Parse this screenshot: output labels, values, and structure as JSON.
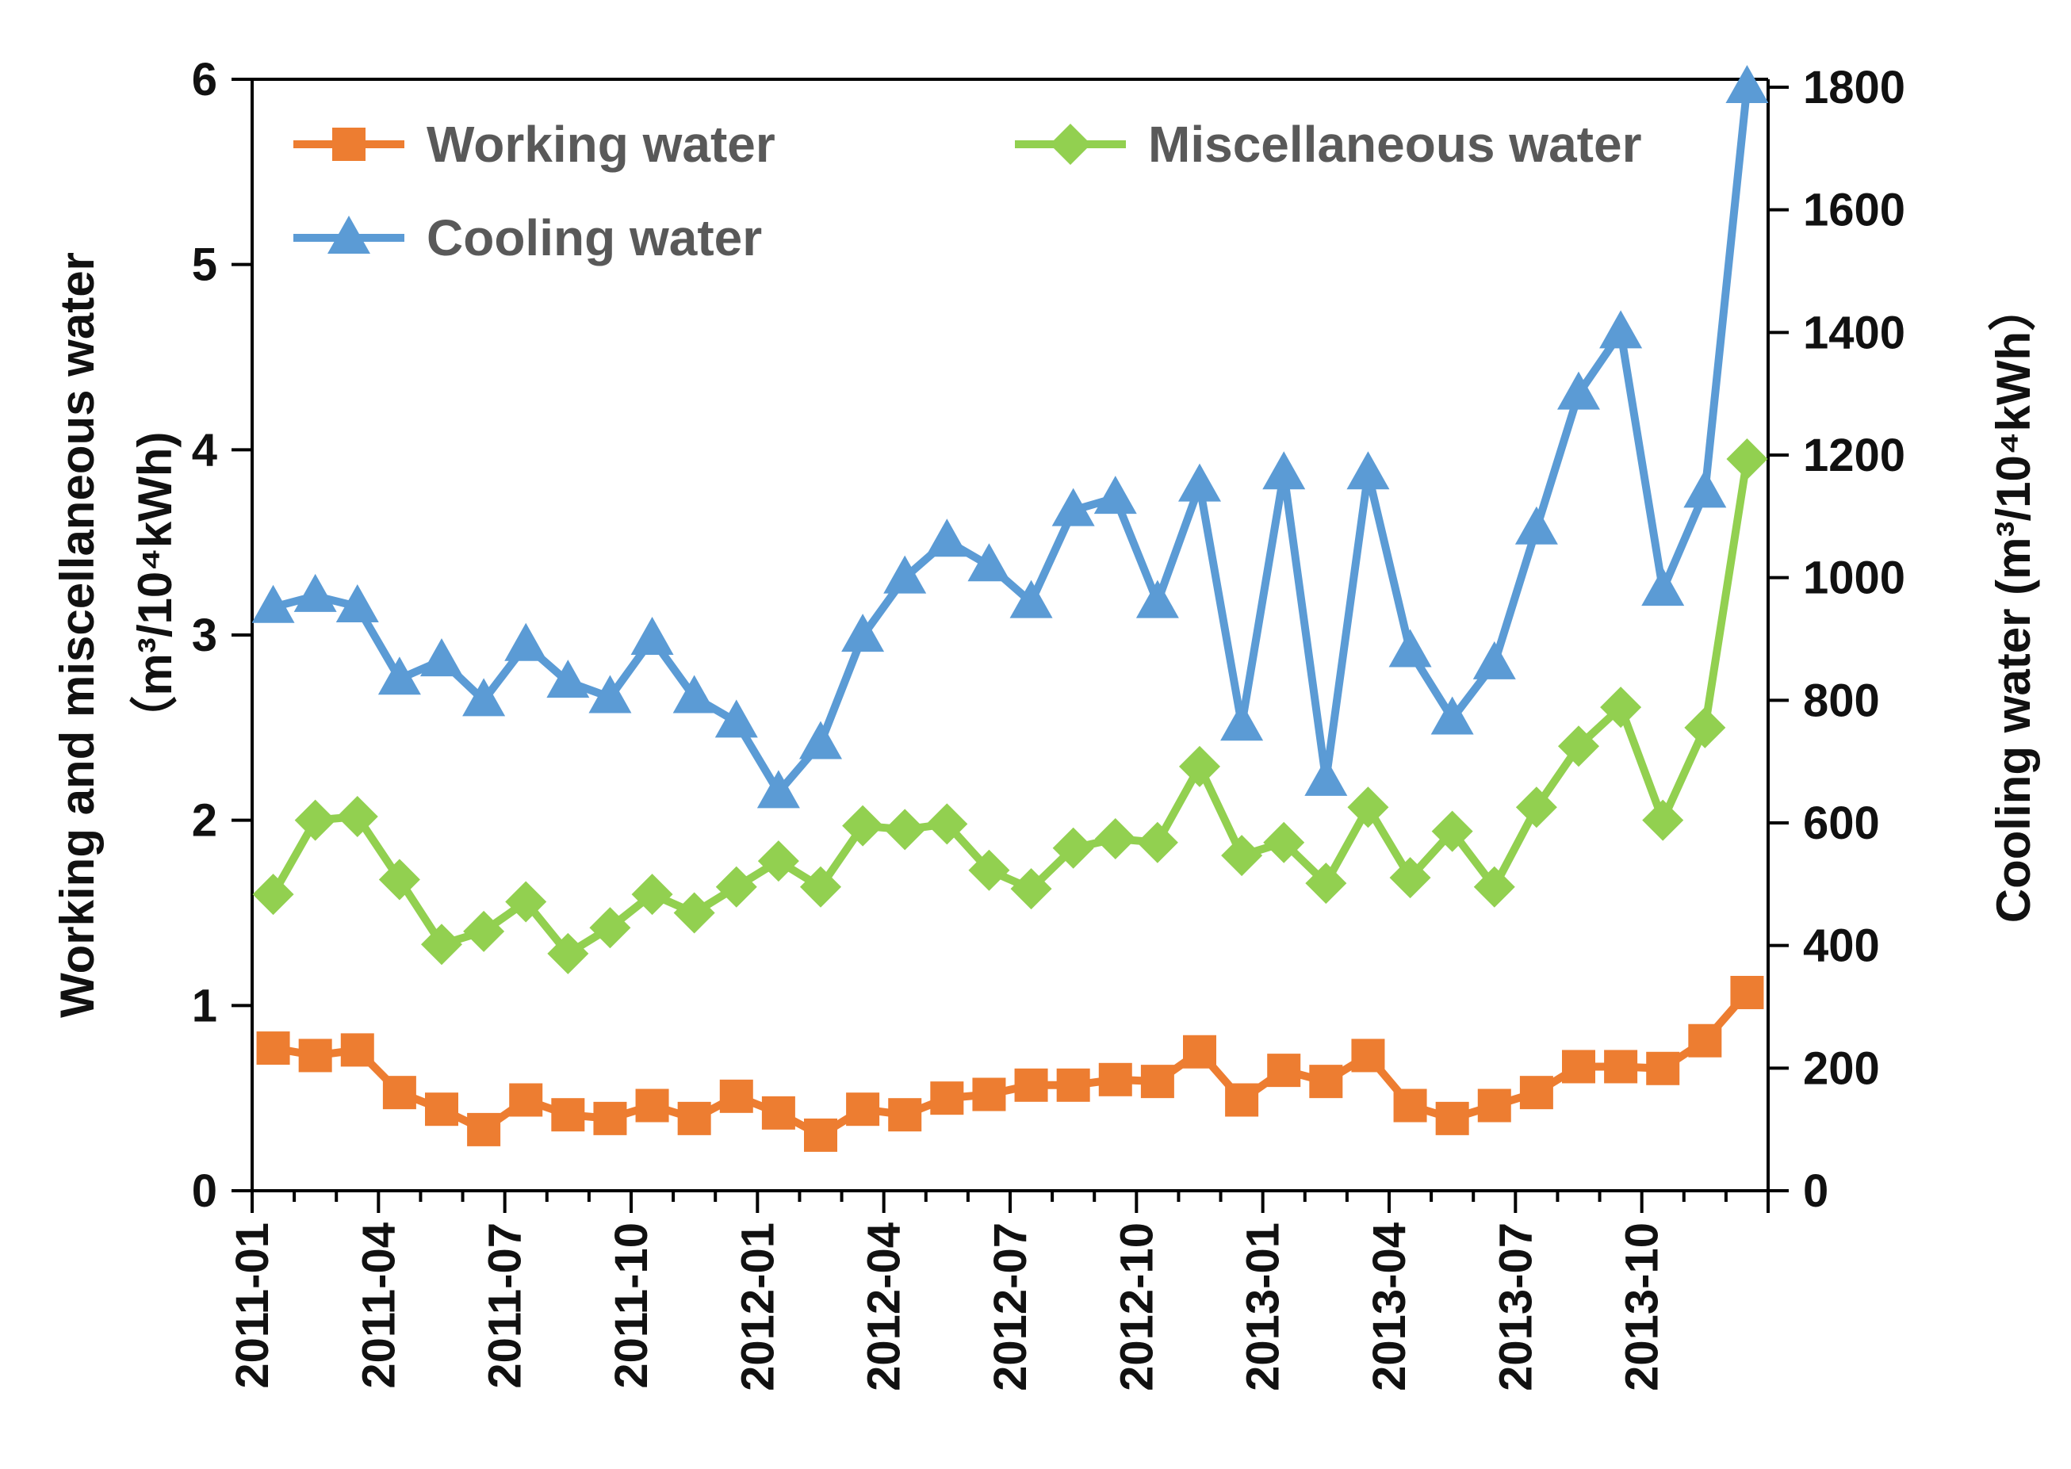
{
  "chart_data": {
    "type": "line",
    "title": "",
    "x": [
      "2011-01",
      "2011-02",
      "2011-03",
      "2011-04",
      "2011-05",
      "2011-06",
      "2011-07",
      "2011-08",
      "2011-09",
      "2011-10",
      "2011-11",
      "2011-12",
      "2012-01",
      "2012-02",
      "2012-03",
      "2012-04",
      "2012-05",
      "2012-06",
      "2012-07",
      "2012-08",
      "2012-09",
      "2012-10",
      "2012-11",
      "2012-12",
      "2013-01",
      "2013-02",
      "2013-03",
      "2013-04",
      "2013-05",
      "2013-06",
      "2013-07",
      "2013-08",
      "2013-09",
      "2013-10",
      "2013-11",
      "2013-12"
    ],
    "xtick_labels": [
      "2011-01",
      "2011-04",
      "2011-07",
      "2011-10",
      "2012-01",
      "2012-04",
      "2012-07",
      "2012-10",
      "2013-01",
      "2013-04",
      "2013-07",
      "2013-10"
    ],
    "ylabel_left_line1": "Working and miscellaneous water",
    "ylabel_left_line2": "（m³/10⁴kWh)",
    "ylabel_right": "Cooling water (m³/10⁴kWh）",
    "ylim_left": [
      0,
      6
    ],
    "ylim_right": [
      0,
      1800
    ],
    "yticks_left": [
      "0",
      "1",
      "2",
      "3",
      "4",
      "5",
      "6"
    ],
    "yticks_right": [
      "0",
      "200",
      "400",
      "600",
      "800",
      "1000",
      "1200",
      "1400",
      "1600",
      "1800"
    ],
    "legend_position": "top",
    "series": [
      {
        "name": "Working water",
        "axis": "left",
        "marker": "square",
        "color": "#ED7D31",
        "values": [
          0.77,
          0.73,
          0.76,
          0.53,
          0.44,
          0.33,
          0.49,
          0.41,
          0.39,
          0.46,
          0.39,
          0.51,
          0.42,
          0.3,
          0.44,
          0.41,
          0.5,
          0.52,
          0.57,
          0.57,
          0.6,
          0.59,
          0.75,
          0.49,
          0.65,
          0.59,
          0.73,
          0.46,
          0.39,
          0.46,
          0.53,
          0.67,
          0.67,
          0.66,
          0.81,
          1.07
        ]
      },
      {
        "name": "Miscellaneous water",
        "axis": "left",
        "marker": "diamond",
        "color": "#92D050",
        "values": [
          1.6,
          2.0,
          2.02,
          1.68,
          1.33,
          1.4,
          1.56,
          1.28,
          1.42,
          1.6,
          1.5,
          1.64,
          1.78,
          1.64,
          1.97,
          1.95,
          1.98,
          1.73,
          1.63,
          1.85,
          1.9,
          1.88,
          2.29,
          1.81,
          1.88,
          1.66,
          2.07,
          1.69,
          1.94,
          1.64,
          2.07,
          2.4,
          2.61,
          2.0,
          2.5,
          3.95
        ]
      },
      {
        "name": "Cooling water",
        "axis": "right",
        "marker": "triangle",
        "color": "#5B9BD5",
        "values": [
          952,
          970,
          953,
          835,
          865,
          800,
          890,
          830,
          805,
          900,
          805,
          765,
          650,
          730,
          905,
          1000,
          1060,
          1020,
          960,
          1110,
          1130,
          960,
          1150,
          760,
          1170,
          670,
          1170,
          880,
          770,
          860,
          1080,
          1300,
          1400,
          980,
          1140,
          1800
        ]
      }
    ]
  }
}
